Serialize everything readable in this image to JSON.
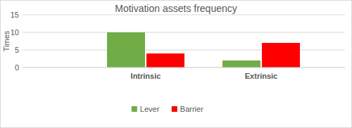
{
  "chart_data": {
    "type": "bar",
    "title": "Motivation assets frequency",
    "y_label": "Times",
    "categories": [
      "Intrinsic",
      "Extrinsic"
    ],
    "series": [
      {
        "name": "Lever",
        "color": "#70ad47",
        "values": [
          10,
          2
        ]
      },
      {
        "name": "Barrier",
        "color": "#ff0000",
        "values": [
          4,
          7
        ]
      }
    ],
    "ylim": [
      0,
      15
    ],
    "yticks": [
      0,
      5,
      10,
      15
    ],
    "grid": true,
    "legend": "bottom"
  }
}
